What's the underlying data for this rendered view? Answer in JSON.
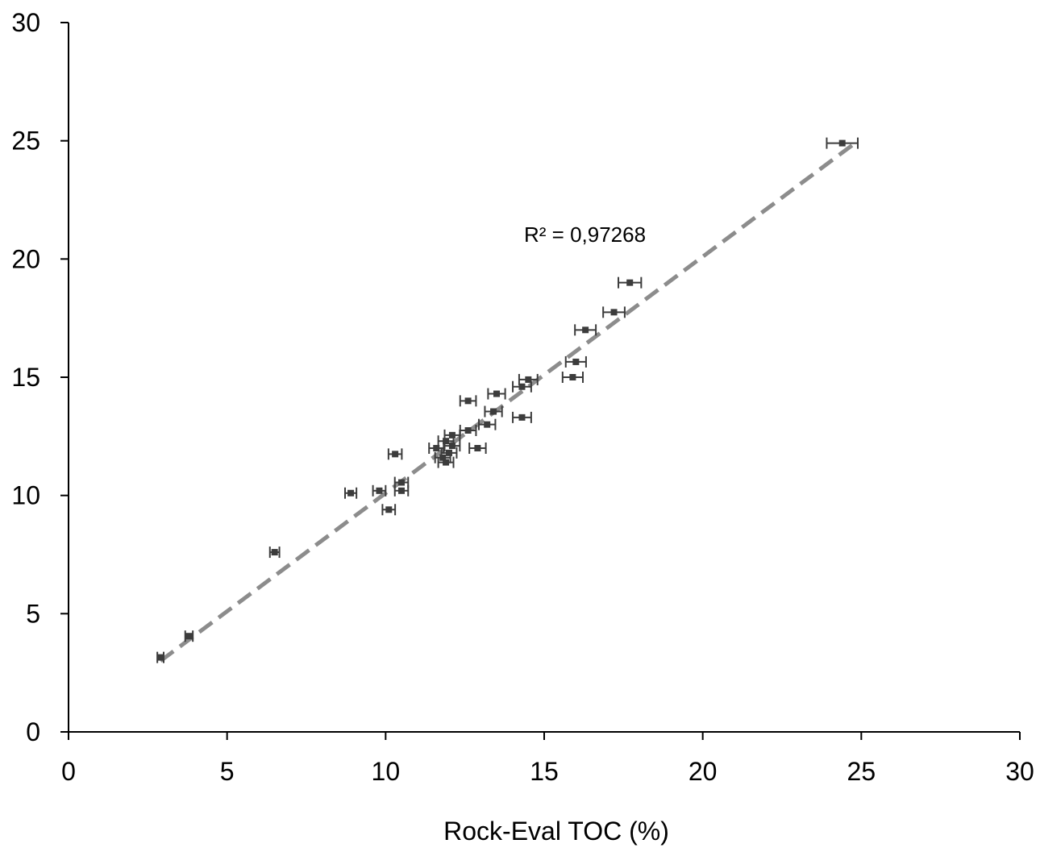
{
  "chart_data": {
    "type": "scatter",
    "title": "",
    "xlabel": "Rock-Eval TOC (%)",
    "ylabel": "",
    "xlim": [
      0,
      30
    ],
    "ylim": [
      0,
      30
    ],
    "xticks": [
      0,
      5,
      10,
      15,
      20,
      25,
      30
    ],
    "yticks": [
      0,
      5,
      10,
      15,
      20,
      25,
      30
    ],
    "grid": false,
    "legend": "none",
    "annotation": "R² = 0,97268",
    "trendline": {
      "style": "dashed",
      "color": "#8c8c8c",
      "x": [
        2.9,
        24.8
      ],
      "y": [
        3.0,
        24.9
      ]
    },
    "marker_color": "#3c3c3c",
    "series": [
      {
        "points": [
          {
            "x": 2.9,
            "y": 3.15,
            "xerr": 0.1
          },
          {
            "x": 3.8,
            "y": 4.05,
            "xerr": 0.12
          },
          {
            "x": 6.5,
            "y": 7.6,
            "xerr": 0.15
          },
          {
            "x": 8.9,
            "y": 10.1,
            "xerr": 0.18
          },
          {
            "x": 9.8,
            "y": 10.2,
            "xerr": 0.2
          },
          {
            "x": 10.1,
            "y": 9.4,
            "xerr": 0.2
          },
          {
            "x": 10.5,
            "y": 10.2,
            "xerr": 0.21
          },
          {
            "x": 10.5,
            "y": 10.55,
            "xerr": 0.21
          },
          {
            "x": 10.3,
            "y": 11.75,
            "xerr": 0.21
          },
          {
            "x": 11.6,
            "y": 12.0,
            "xerr": 0.23
          },
          {
            "x": 11.8,
            "y": 11.6,
            "xerr": 0.24
          },
          {
            "x": 11.9,
            "y": 11.4,
            "xerr": 0.24
          },
          {
            "x": 12.0,
            "y": 11.8,
            "xerr": 0.24
          },
          {
            "x": 12.1,
            "y": 12.1,
            "xerr": 0.24
          },
          {
            "x": 11.9,
            "y": 12.3,
            "xerr": 0.24
          },
          {
            "x": 12.1,
            "y": 12.55,
            "xerr": 0.24
          },
          {
            "x": 12.6,
            "y": 12.75,
            "xerr": 0.25
          },
          {
            "x": 12.9,
            "y": 12.0,
            "xerr": 0.26
          },
          {
            "x": 13.2,
            "y": 13.0,
            "xerr": 0.26
          },
          {
            "x": 12.6,
            "y": 14.0,
            "xerr": 0.25
          },
          {
            "x": 13.4,
            "y": 13.55,
            "xerr": 0.27
          },
          {
            "x": 13.5,
            "y": 14.3,
            "xerr": 0.27
          },
          {
            "x": 14.3,
            "y": 13.3,
            "xerr": 0.29
          },
          {
            "x": 14.3,
            "y": 14.6,
            "xerr": 0.29
          },
          {
            "x": 14.5,
            "y": 14.9,
            "xerr": 0.29
          },
          {
            "x": 15.9,
            "y": 15.0,
            "xerr": 0.32
          },
          {
            "x": 16.0,
            "y": 15.65,
            "xerr": 0.32
          },
          {
            "x": 16.3,
            "y": 17.0,
            "xerr": 0.33
          },
          {
            "x": 17.2,
            "y": 17.75,
            "xerr": 0.34
          },
          {
            "x": 17.7,
            "y": 19.0,
            "xerr": 0.36
          },
          {
            "x": 24.4,
            "y": 24.9,
            "xerr": 0.49
          }
        ]
      }
    ]
  }
}
